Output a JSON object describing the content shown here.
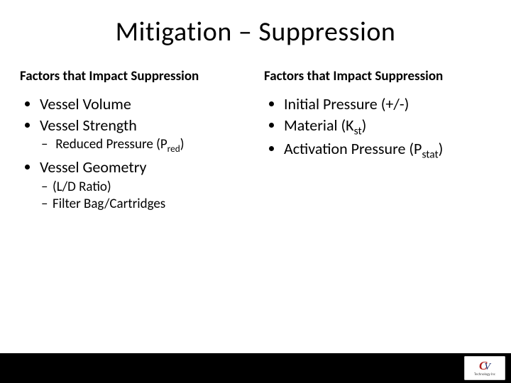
{
  "title": "Mitigation – Suppression",
  "left": {
    "heading": "Factors that Impact Suppression",
    "b1": "Vessel Volume",
    "b2": "Vessel Strength",
    "b2s1_pre": "Reduced Pressure (P",
    "b2s1_sub": "red",
    "b2s1_post": ")",
    "b3": "Vessel  Geometry",
    "b3s1": "(L/D Ratio)",
    "b3s2": "Filter Bag/Cartridges"
  },
  "right": {
    "heading": "Factors that Impact Suppression",
    "b1": "Initial Pressure (+/-)",
    "b2_pre": "Material (K",
    "b2_sub": "st",
    "b2_post": ")",
    "b3_pre": "Activation Pressure (P",
    "b3_sub": "stat",
    "b3_post": ")"
  },
  "logo": {
    "c": "C",
    "v": "V",
    "line1": "Technology Inc"
  }
}
